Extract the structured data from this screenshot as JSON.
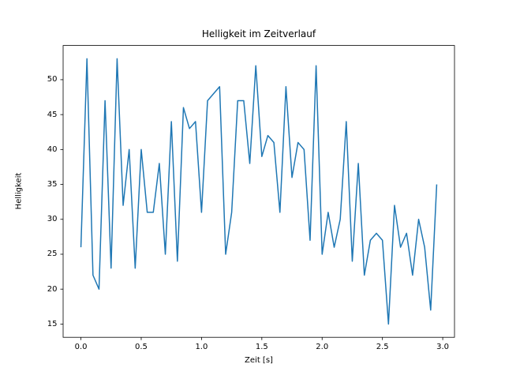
{
  "figure": {
    "background": "#ffffff"
  },
  "chart_data": {
    "type": "line",
    "title": "Helligkeit im Zeitverlauf",
    "xlabel": "Zeit [s]",
    "ylabel": "Helligkeit",
    "line_color": "#1f77b4",
    "grid": false,
    "legend": null,
    "xlim": [
      -0.1475,
      3.0975
    ],
    "ylim": [
      13.1,
      54.9
    ],
    "x_ticks": [
      0.0,
      0.5,
      1.0,
      1.5,
      2.0,
      2.5,
      3.0
    ],
    "x_tick_labels": [
      "0.0",
      "0.5",
      "1.0",
      "1.5",
      "2.0",
      "2.5",
      "3.0"
    ],
    "y_ticks": [
      15,
      20,
      25,
      30,
      35,
      40,
      45,
      50
    ],
    "y_tick_labels": [
      "15",
      "20",
      "25",
      "30",
      "35",
      "40",
      "45",
      "50"
    ],
    "x": [
      0.0,
      0.05,
      0.1,
      0.15,
      0.2,
      0.25,
      0.3,
      0.35,
      0.4,
      0.45,
      0.5,
      0.55,
      0.6,
      0.65,
      0.7,
      0.75,
      0.8,
      0.85,
      0.9,
      0.95,
      1.0,
      1.05,
      1.1,
      1.15,
      1.2,
      1.25,
      1.3,
      1.35,
      1.4,
      1.45,
      1.5,
      1.55,
      1.6,
      1.65,
      1.7,
      1.75,
      1.8,
      1.85,
      1.9,
      1.95,
      2.0,
      2.05,
      2.1,
      2.15,
      2.2,
      2.25,
      2.3,
      2.35,
      2.4,
      2.45,
      2.5,
      2.55,
      2.6,
      2.65,
      2.7,
      2.75,
      2.8,
      2.85,
      2.9,
      2.95
    ],
    "y": [
      26,
      53,
      22,
      20,
      47,
      23,
      53,
      32,
      40,
      23,
      40,
      31,
      31,
      38,
      25,
      44,
      24,
      46,
      43,
      44,
      31,
      47,
      48,
      49,
      25,
      31,
      47,
      47,
      38,
      52,
      39,
      42,
      41,
      31,
      49,
      36,
      41,
      40,
      27,
      52,
      25,
      31,
      26,
      30,
      44,
      24,
      38,
      22,
      27,
      28,
      27,
      15,
      32,
      26,
      28,
      22,
      30,
      26,
      17,
      35
    ]
  }
}
